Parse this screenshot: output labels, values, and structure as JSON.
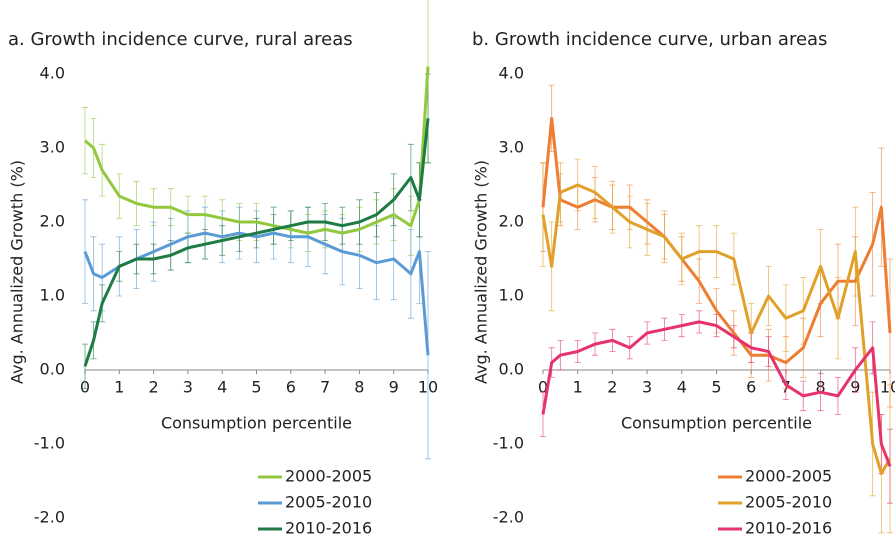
{
  "chart_data": [
    {
      "type": "line",
      "title": "a. Growth incidence curve, rural areas",
      "x_label": "Consumption percentile",
      "y_label": "Avg. Annualized Growth (%)",
      "x": [
        0,
        0.25,
        0.5,
        1,
        1.5,
        2,
        2.5,
        3,
        3.5,
        4,
        4.5,
        5,
        5.5,
        6,
        6.5,
        7,
        7.5,
        8,
        8.5,
        9,
        9.5,
        9.75,
        10
      ],
      "xlim": [
        0,
        10
      ],
      "xticks": [
        0,
        1,
        2,
        3,
        4,
        5,
        6,
        7,
        8,
        9,
        10
      ],
      "ylim": [
        -2,
        4
      ],
      "yticks": [
        {
          "value": -2,
          "label": "-2.0"
        },
        {
          "value": -1,
          "label": "-1.0"
        },
        {
          "value": 0,
          "label": "0.0"
        },
        {
          "value": 1,
          "label": "1.0"
        },
        {
          "value": 2,
          "label": "2.0"
        },
        {
          "value": 3,
          "label": "3.0"
        },
        {
          "value": 4,
          "label": "4.0"
        }
      ],
      "series": [
        {
          "name": "2000-2005",
          "color": "#92c83e",
          "values": [
            3.1,
            3.0,
            2.7,
            2.35,
            2.25,
            2.2,
            2.2,
            2.1,
            2.1,
            2.05,
            2.0,
            2.0,
            1.95,
            1.9,
            1.85,
            1.9,
            1.85,
            1.9,
            2.0,
            2.1,
            1.95,
            2.3,
            4.1
          ],
          "errors": [
            0.45,
            0.4,
            0.35,
            0.3,
            0.3,
            0.25,
            0.25,
            0.25,
            0.25,
            0.25,
            0.25,
            0.25,
            0.25,
            0.25,
            0.25,
            0.25,
            0.25,
            0.3,
            0.3,
            0.35,
            0.4,
            0.5,
            1.3
          ]
        },
        {
          "name": "2005-2010",
          "color": "#5b9bd5",
          "values": [
            1.6,
            1.3,
            1.25,
            1.4,
            1.5,
            1.6,
            1.7,
            1.8,
            1.85,
            1.8,
            1.85,
            1.8,
            1.85,
            1.8,
            1.8,
            1.7,
            1.6,
            1.55,
            1.45,
            1.5,
            1.3,
            1.6,
            0.2
          ],
          "errors": [
            0.7,
            0.5,
            0.45,
            0.4,
            0.4,
            0.4,
            0.35,
            0.35,
            0.35,
            0.35,
            0.35,
            0.35,
            0.35,
            0.35,
            0.4,
            0.4,
            0.45,
            0.45,
            0.5,
            0.55,
            0.6,
            0.7,
            1.4
          ]
        },
        {
          "name": "2010-2016",
          "color": "#1e7b45",
          "values": [
            0.05,
            0.4,
            0.9,
            1.4,
            1.5,
            1.5,
            1.55,
            1.65,
            1.7,
            1.75,
            1.8,
            1.85,
            1.9,
            1.95,
            2.0,
            2.0,
            1.95,
            2.0,
            2.1,
            2.3,
            2.6,
            2.3,
            3.4
          ],
          "errors": [
            0.3,
            0.25,
            0.25,
            0.2,
            0.2,
            0.2,
            0.2,
            0.2,
            0.2,
            0.2,
            0.2,
            0.2,
            0.2,
            0.2,
            0.2,
            0.25,
            0.25,
            0.3,
            0.3,
            0.35,
            0.45,
            0.5,
            0.6
          ]
        }
      ]
    },
    {
      "type": "line",
      "title": "b. Growth incidence curve, urban areas",
      "x_label": "Consumption percentile",
      "y_label": "Avg. Annualized Growth (%)",
      "x": [
        0,
        0.25,
        0.5,
        1,
        1.5,
        2,
        2.5,
        3,
        3.5,
        4,
        4.5,
        5,
        5.5,
        6,
        6.5,
        7,
        7.5,
        8,
        8.5,
        9,
        9.5,
        9.75,
        10
      ],
      "xlim": [
        0,
        10
      ],
      "xticks": [
        0,
        1,
        2,
        3,
        4,
        5,
        6,
        7,
        8,
        9,
        10
      ],
      "ylim": [
        -2,
        4
      ],
      "yticks": [
        {
          "value": -2,
          "label": "-2.0"
        },
        {
          "value": -1,
          "label": "-1.0"
        },
        {
          "value": 0,
          "label": "0.0"
        },
        {
          "value": 1,
          "label": "1.0"
        },
        {
          "value": 2,
          "label": "2.0"
        },
        {
          "value": 3,
          "label": "3.0"
        },
        {
          "value": 4,
          "label": "4.0"
        }
      ],
      "series": [
        {
          "name": "2000-2005",
          "color": "#ed7d31",
          "values": [
            2.2,
            3.4,
            2.3,
            2.2,
            2.3,
            2.2,
            2.2,
            2.0,
            1.8,
            1.5,
            1.2,
            0.8,
            0.5,
            0.2,
            0.2,
            0.1,
            0.3,
            0.9,
            1.2,
            1.2,
            1.7,
            2.2,
            0.5
          ],
          "errors": [
            0.6,
            0.45,
            0.35,
            0.3,
            0.3,
            0.3,
            0.3,
            0.3,
            0.3,
            0.3,
            0.3,
            0.3,
            0.3,
            0.3,
            0.35,
            0.35,
            0.4,
            0.45,
            0.5,
            0.6,
            0.7,
            0.8,
            1.0
          ]
        },
        {
          "name": "2005-2010",
          "color": "#e0a02a",
          "values": [
            2.1,
            1.4,
            2.4,
            2.5,
            2.4,
            2.2,
            2.0,
            1.9,
            1.8,
            1.5,
            1.6,
            1.6,
            1.5,
            0.5,
            1.0,
            0.7,
            0.8,
            1.4,
            0.7,
            1.6,
            -1.0,
            -1.4,
            -1.2
          ],
          "errors": [
            0.7,
            0.6,
            0.4,
            0.35,
            0.35,
            0.35,
            0.35,
            0.35,
            0.35,
            0.35,
            0.35,
            0.35,
            0.35,
            0.4,
            0.4,
            0.45,
            0.45,
            0.5,
            0.55,
            0.6,
            0.7,
            0.8,
            1.0
          ]
        },
        {
          "name": "2010-2016",
          "color": "#e6336b",
          "values": [
            -0.6,
            0.1,
            0.2,
            0.25,
            0.35,
            0.4,
            0.3,
            0.5,
            0.55,
            0.6,
            0.65,
            0.6,
            0.45,
            0.3,
            0.25,
            -0.2,
            -0.35,
            -0.3,
            -0.35,
            0.0,
            0.3,
            -1.0,
            -1.3
          ],
          "errors": [
            0.3,
            0.2,
            0.2,
            0.15,
            0.15,
            0.15,
            0.15,
            0.15,
            0.15,
            0.15,
            0.15,
            0.15,
            0.15,
            0.2,
            0.2,
            0.2,
            0.2,
            0.25,
            0.25,
            0.3,
            0.35,
            0.4,
            0.5
          ]
        }
      ]
    }
  ]
}
